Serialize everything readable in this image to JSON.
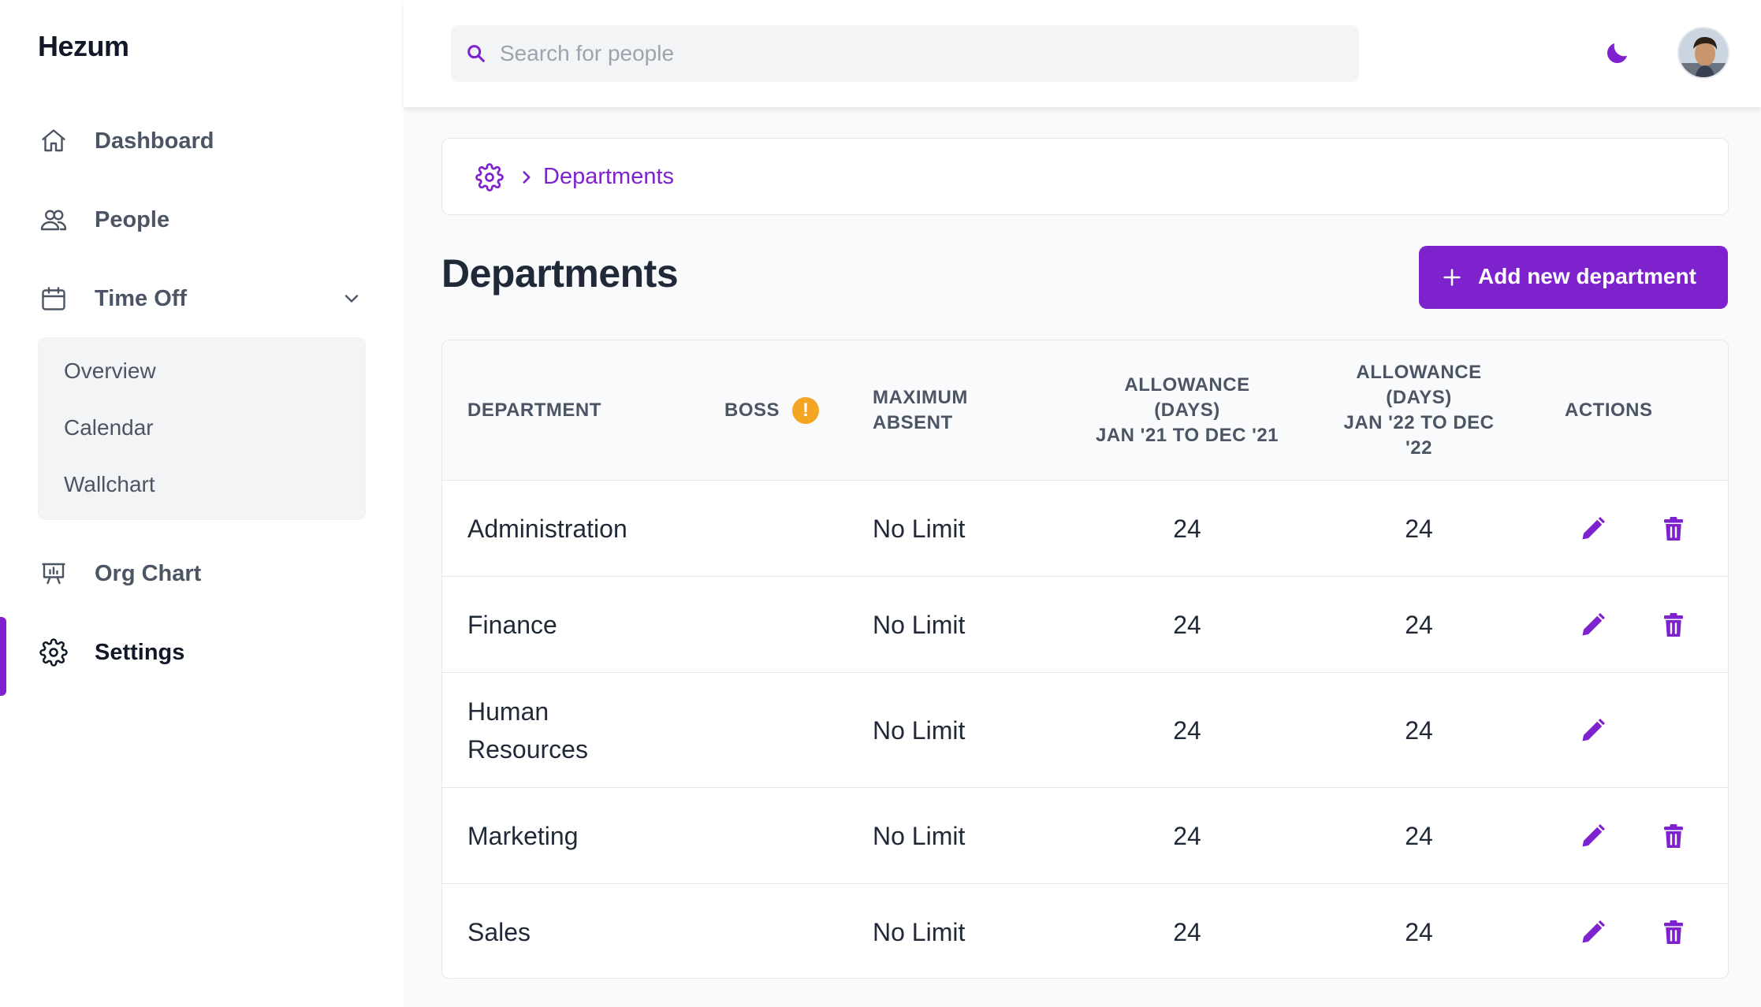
{
  "app": {
    "name": "Hezum"
  },
  "sidebar": {
    "items": [
      {
        "label": "Dashboard",
        "icon": "home-icon"
      },
      {
        "label": "People",
        "icon": "people-icon"
      },
      {
        "label": "Time Off",
        "icon": "calendar-icon",
        "expanded": true
      },
      {
        "label": "Org Chart",
        "icon": "presentation-chart-icon"
      },
      {
        "label": "Settings",
        "icon": "gear-icon",
        "active": true
      }
    ],
    "time_off_submenu": [
      "Overview",
      "Calendar",
      "Wallchart"
    ]
  },
  "topbar": {
    "search": {
      "placeholder": "Search for people",
      "value": ""
    },
    "theme_toggle_icon": "moon-icon"
  },
  "breadcrumb": {
    "root_icon": "gear-icon",
    "current": "Departments"
  },
  "page": {
    "title": "Departments",
    "add_button_label": "Add new department"
  },
  "table": {
    "headers": {
      "department": "DEPARTMENT",
      "boss": "BOSS",
      "max_absent_1": "MAXIMUM",
      "max_absent_2": "ABSENT",
      "allow21_1": "ALLOWANCE",
      "allow21_2": "(DAYS)",
      "allow21_3": "JAN '21 TO DEC '21",
      "allow22_1": "ALLOWANCE",
      "allow22_2": "(DAYS)",
      "allow22_3": "JAN '22 TO DEC",
      "allow22_4": "'22",
      "actions": "ACTIONS"
    },
    "boss_info_glyph": "!",
    "rows": [
      {
        "department": "Administration",
        "max_absent": "No Limit",
        "allowance_21": "24",
        "allowance_22": "24",
        "deletable": true
      },
      {
        "department": "Finance",
        "max_absent": "No Limit",
        "allowance_21": "24",
        "allowance_22": "24",
        "deletable": true
      },
      {
        "department_line1": "Human",
        "department_line2": "Resources",
        "max_absent": "No Limit",
        "allowance_21": "24",
        "allowance_22": "24",
        "deletable": false
      },
      {
        "department": "Marketing",
        "max_absent": "No Limit",
        "allowance_21": "24",
        "allowance_22": "24",
        "deletable": true
      },
      {
        "department": "Sales",
        "max_absent": "No Limit",
        "allowance_21": "24",
        "allowance_22": "24",
        "deletable": true
      }
    ]
  },
  "colors": {
    "accent": "#7e22ce",
    "warning": "#f5a524",
    "text_primary": "#1f2937",
    "text_secondary": "#4b5563"
  }
}
